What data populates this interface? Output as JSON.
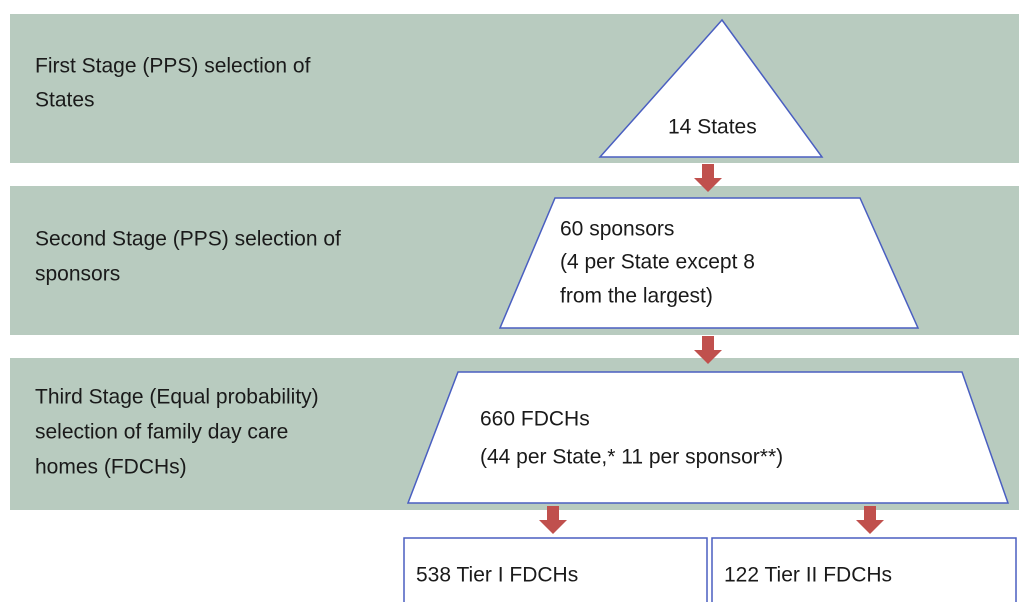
{
  "stages": [
    {
      "label": [
        "First Stage (PPS) selection of",
        "States"
      ],
      "shape": [
        "14 States"
      ]
    },
    {
      "label": [
        "Second Stage (PPS) selection of",
        "sponsors"
      ],
      "shape": [
        "60 sponsors",
        "(4 per State except 8",
        "from the largest)"
      ]
    },
    {
      "label": [
        "Third Stage (Equal probability)",
        "selection of family day care",
        "homes (FDCHs)"
      ],
      "shape": [
        "660 FDCHs",
        "(44 per State,* 11 per sponsor**)"
      ]
    }
  ],
  "outcomes": [
    "538 Tier I FDCHs",
    "122 Tier II FDCHs"
  ]
}
